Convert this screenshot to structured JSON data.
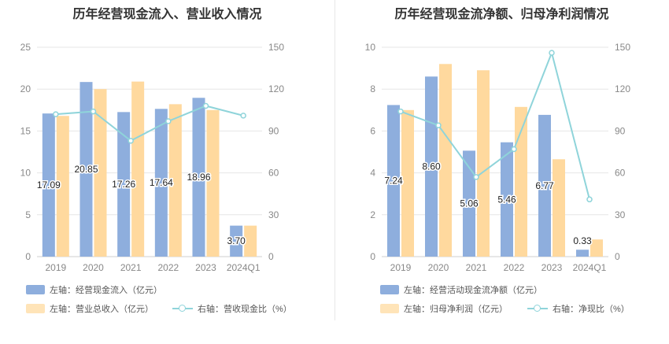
{
  "left_chart": {
    "title": "历年经营现金流入、营业收入情况",
    "legend": {
      "bar1": "左轴：经营现金流入（亿元）",
      "bar2": "左轴：营业总收入（亿元）",
      "line": "右轴：营收现金比（%）"
    }
  },
  "right_chart": {
    "title": "历年经营现金流净额、归母净利润情况",
    "legend": {
      "bar1": "左轴：经营活动现金流净额（亿元）",
      "bar2": "左轴：归母净利润（亿元）",
      "line": "右轴：净现比（%）"
    }
  },
  "colors": {
    "bar_primary": "#8eaedd",
    "bar_secondary": "#ffd99e",
    "line": "#8fd4da",
    "grid": "#e6e6e6",
    "axis_text": "#888888"
  },
  "chart_data": [
    {
      "type": "bar",
      "title": "历年经营现金流入、营业收入情况",
      "categories": [
        "2019",
        "2020",
        "2021",
        "2022",
        "2023",
        "2024Q1"
      ],
      "left_axis": {
        "ylim": [
          0,
          25
        ],
        "ticks": [
          0,
          5,
          10,
          15,
          20,
          25
        ]
      },
      "right_axis": {
        "ylim": [
          0,
          150
        ],
        "ticks": [
          0,
          30,
          60,
          90,
          120,
          150
        ]
      },
      "series": [
        {
          "name": "左轴：经营现金流入（亿元）",
          "kind": "bar",
          "axis": "left",
          "values": [
            17.09,
            20.85,
            17.26,
            17.64,
            18.96,
            3.7
          ],
          "labels": [
            "17.09",
            "20.85",
            "17.26",
            "17.64",
            "18.96",
            "3.70"
          ]
        },
        {
          "name": "左轴：营业总收入（亿元）",
          "kind": "bar",
          "axis": "left",
          "values": [
            16.8,
            20.0,
            20.9,
            18.2,
            17.5,
            3.7
          ]
        },
        {
          "name": "右轴：营收现金比（%）",
          "kind": "line",
          "axis": "right",
          "values": [
            102,
            104,
            83,
            97,
            108,
            101
          ]
        }
      ],
      "grid": true
    },
    {
      "type": "bar",
      "title": "历年经营现金流净额、归母净利润情况",
      "categories": [
        "2019",
        "2020",
        "2021",
        "2022",
        "2023",
        "2024Q1"
      ],
      "left_axis": {
        "ylim": [
          0,
          10
        ],
        "ticks": [
          0,
          2,
          4,
          6,
          8,
          10
        ]
      },
      "right_axis": {
        "ylim": [
          0,
          150
        ],
        "ticks": [
          0,
          30,
          60,
          90,
          120,
          150
        ]
      },
      "series": [
        {
          "name": "左轴：经营活动现金流净额（亿元）",
          "kind": "bar",
          "axis": "left",
          "values": [
            7.24,
            8.6,
            5.06,
            5.46,
            6.77,
            0.33
          ],
          "labels": [
            "7.24",
            "8.60",
            "5.06",
            "5.46",
            "6.77",
            "0.33"
          ]
        },
        {
          "name": "左轴：归母净利润（亿元）",
          "kind": "bar",
          "axis": "left",
          "values": [
            7.0,
            9.2,
            8.9,
            7.15,
            4.65,
            0.82
          ]
        },
        {
          "name": "右轴：净现比（%）",
          "kind": "line",
          "axis": "right",
          "values": [
            104,
            94,
            57,
            77,
            146,
            41
          ]
        }
      ],
      "grid": true
    }
  ]
}
